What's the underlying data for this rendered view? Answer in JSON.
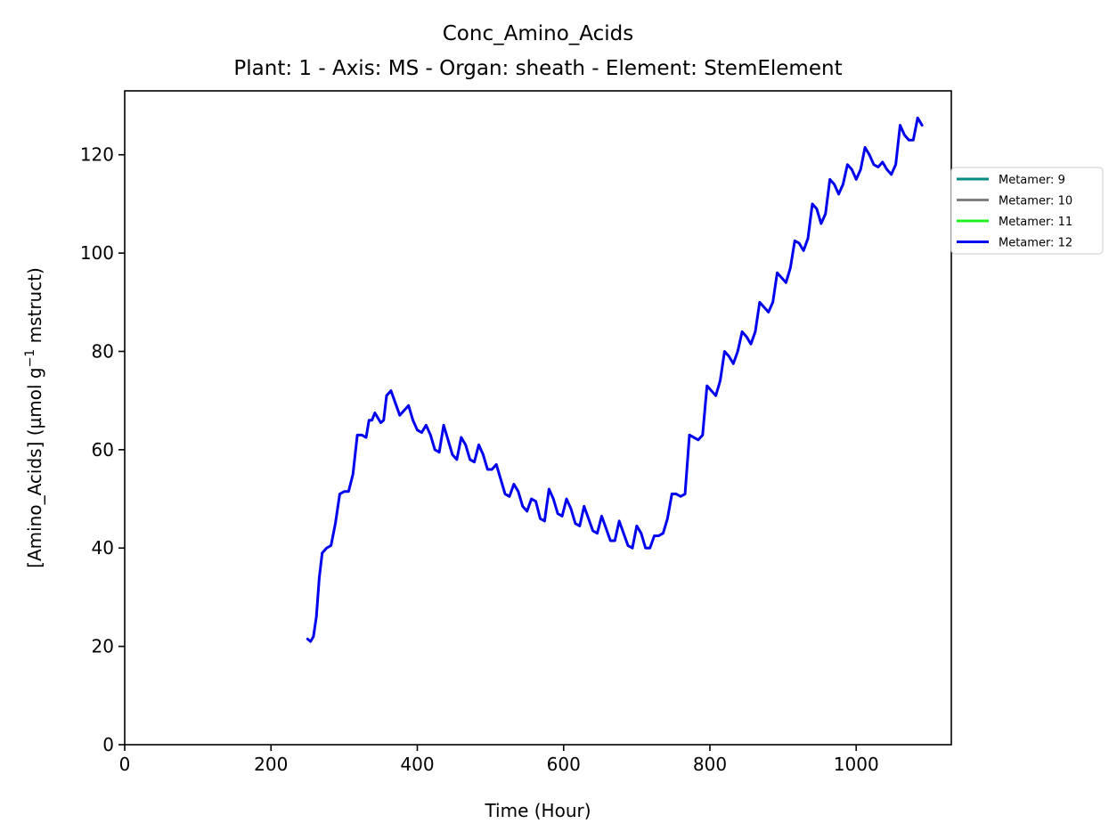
{
  "chart_data": {
    "type": "line",
    "title": "Conc_Amino_Acids",
    "subtitle": "Plant: 1 - Axis: MS - Organ: sheath - Element: StemElement",
    "xlabel": "Time (Hour)",
    "ylabel": "[Amino_Acids] (µmol g",
    "ylabel_sup": "−1",
    "ylabel_tail": " mstruct)",
    "xlim": [
      0,
      1130
    ],
    "ylim": [
      0,
      133
    ],
    "xticks": [
      0,
      200,
      400,
      600,
      800,
      1000
    ],
    "xtick_labels": [
      "0",
      "200",
      "400",
      "600",
      "800",
      "1000"
    ],
    "yticks": [
      0,
      20,
      40,
      60,
      80,
      100,
      120
    ],
    "ytick_labels": [
      "0",
      "20",
      "40",
      "60",
      "80",
      "100",
      "120"
    ],
    "grid": false,
    "legend_position": "outside-right",
    "series": [
      {
        "name": "Metamer: 9",
        "color": "#008B80",
        "x": [],
        "y": []
      },
      {
        "name": "Metamer: 10",
        "color": "#808080",
        "x": [],
        "y": []
      },
      {
        "name": "Metamer: 11",
        "color": "#22EE22",
        "x": [],
        "y": []
      },
      {
        "name": "Metamer: 12",
        "color": "#0000EE",
        "x": [
          250,
          254,
          258,
          262,
          266,
          270,
          276,
          282,
          288,
          294,
          300,
          306,
          312,
          318,
          324,
          330,
          334,
          338,
          342,
          346,
          350,
          354,
          358,
          364,
          370,
          376,
          382,
          388,
          394,
          400,
          406,
          412,
          418,
          424,
          430,
          436,
          442,
          448,
          454,
          460,
          466,
          472,
          478,
          484,
          490,
          496,
          502,
          508,
          514,
          520,
          526,
          532,
          538,
          544,
          550,
          556,
          562,
          568,
          574,
          580,
          586,
          592,
          598,
          604,
          610,
          616,
          622,
          628,
          634,
          640,
          646,
          652,
          658,
          664,
          670,
          676,
          682,
          688,
          694,
          700,
          706,
          712,
          718,
          724,
          730,
          736,
          742,
          748,
          754,
          760,
          766,
          772,
          778,
          784,
          790,
          796,
          802,
          808,
          814,
          820,
          826,
          832,
          838,
          844,
          850,
          856,
          862,
          868,
          874,
          880,
          886,
          892,
          898,
          904,
          910,
          916,
          922,
          928,
          934,
          940,
          946,
          952,
          958,
          964,
          970,
          976,
          982,
          988,
          994,
          1000,
          1006,
          1012,
          1018,
          1024,
          1030,
          1036,
          1042,
          1048,
          1054,
          1060,
          1066,
          1072,
          1078,
          1084,
          1090
        ],
        "y": [
          21.5,
          21,
          22,
          26,
          34,
          39,
          40,
          40.5,
          45,
          51,
          51.5,
          51.5,
          55,
          63,
          63,
          62.5,
          66,
          66,
          67.5,
          66.5,
          65.5,
          66,
          71,
          72,
          69.5,
          67,
          68,
          69,
          66,
          64,
          63.5,
          65,
          63,
          60,
          59.5,
          65,
          62,
          59,
          58,
          62.5,
          61,
          58,
          57.5,
          61,
          59,
          56,
          56,
          57,
          54,
          51,
          50.5,
          53,
          51.5,
          48.5,
          47.5,
          50,
          49.5,
          46,
          45.5,
          52,
          50,
          47,
          46.5,
          50,
          48,
          45,
          44.5,
          48.5,
          46,
          43.5,
          43,
          46.5,
          44,
          41.5,
          41.5,
          45.5,
          43,
          40.5,
          40,
          44.5,
          43,
          40,
          40,
          42.5,
          42.5,
          43,
          46,
          51,
          51,
          50.5,
          51,
          63,
          62.5,
          62,
          63,
          73,
          72,
          71,
          74,
          80,
          79,
          77.5,
          80,
          84,
          83,
          81.5,
          84,
          90,
          89,
          88,
          90,
          96,
          95,
          94,
          97,
          102.5,
          102,
          100.5,
          103,
          110,
          109,
          106,
          108,
          115,
          114,
          112,
          114,
          118,
          117,
          115,
          117,
          121.5,
          120,
          118,
          117.5,
          118.5,
          117,
          116,
          118,
          126,
          124,
          123,
          123,
          127.5,
          126
        ]
      }
    ]
  }
}
